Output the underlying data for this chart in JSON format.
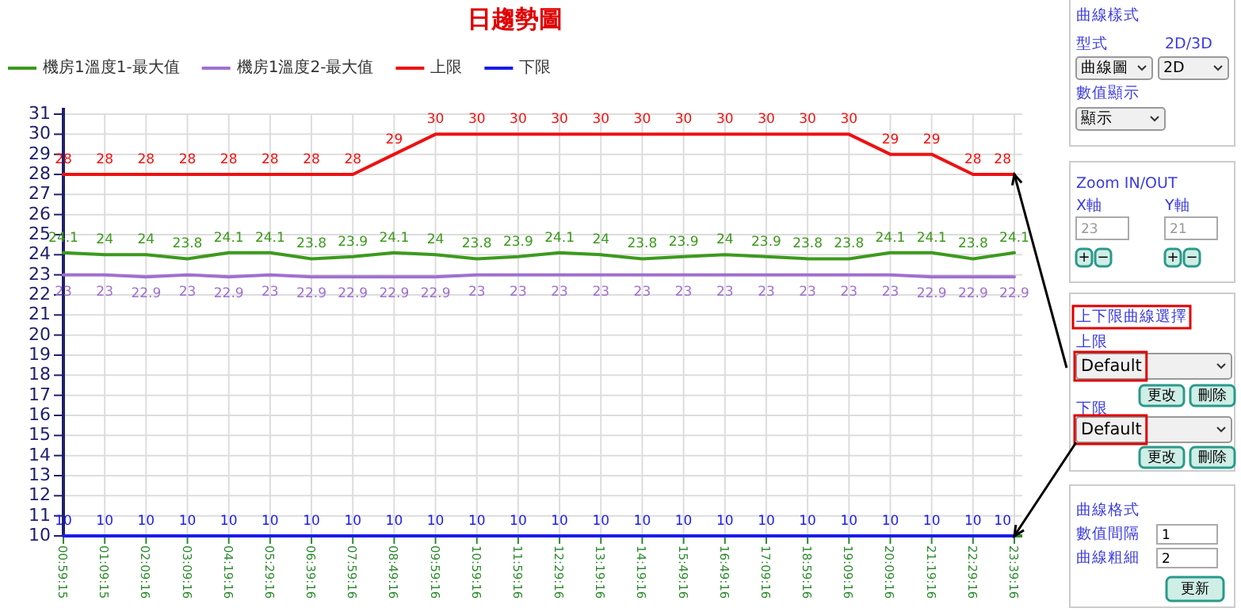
{
  "chart_data": {
    "type": "line",
    "title": "日趨勢圖",
    "categories": [
      "00:59:15",
      "01:09:15",
      "02:09:16",
      "03:09:16",
      "04:19:16",
      "05:29:16",
      "06:39:16",
      "07:59:16",
      "08:49:16",
      "09:59:16",
      "10:59:16",
      "11:59:16",
      "12:29:16",
      "13:19:16",
      "14:19:16",
      "15:49:16",
      "16:49:16",
      "17:09:16",
      "18:59:16",
      "19:09:16",
      "20:09:16",
      "21:19:16",
      "22:29:16",
      "23:39:16"
    ],
    "series": [
      {
        "name": "機房1溫度1-最大值",
        "color": "#3c9a1c",
        "values": [
          24.1,
          24,
          24,
          23.8,
          24.1,
          24.1,
          23.8,
          23.9,
          24.1,
          24,
          23.8,
          23.9,
          24.1,
          24,
          23.8,
          23.9,
          24,
          23.9,
          23.8,
          23.8,
          24.1,
          24.1,
          23.8,
          24.1
        ]
      },
      {
        "name": "機房1溫度2-最大值",
        "color": "#a070d0",
        "values": [
          23,
          23,
          22.9,
          23,
          22.9,
          23,
          22.9,
          22.9,
          22.9,
          22.9,
          23,
          23,
          23,
          23,
          23,
          23,
          23,
          23,
          23,
          23,
          23,
          22.9,
          22.9,
          22.9
        ]
      },
      {
        "name": "上限",
        "color": "#ee1111",
        "values": [
          28,
          28,
          28,
          28,
          28,
          28,
          28,
          28,
          29,
          30,
          30,
          30,
          30,
          30,
          30,
          30,
          30,
          30,
          30,
          30,
          29,
          29,
          28,
          28
        ]
      },
      {
        "name": "下限",
        "color": "#1a1aee",
        "values": [
          10,
          10,
          10,
          10,
          10,
          10,
          10,
          10,
          10,
          10,
          10,
          10,
          10,
          10,
          10,
          10,
          10,
          10,
          10,
          10,
          10,
          10,
          10,
          10
        ]
      }
    ],
    "ylim": [
      10,
      31
    ],
    "yticks": [
      10,
      11,
      12,
      13,
      14,
      15,
      16,
      17,
      18,
      19,
      20,
      21,
      22,
      23,
      24,
      25,
      26,
      27,
      28,
      29,
      30,
      31
    ],
    "grid": true,
    "legend": "top left",
    "data_labels": true,
    "line_style": "solid",
    "annotations": [
      "曲線樣式",
      "型式",
      "2D/3D",
      "曲線圖",
      "2D",
      "數值顯示",
      "顯示",
      "Zoom IN/OUT",
      "X軸",
      "Y軸",
      "23",
      "21",
      "+",
      "−",
      "+",
      "−",
      "上下限曲線選擇",
      "上限",
      {
        "text": "Default",
        "x": "23:39:16",
        "y": 28
      },
      "更改",
      "刪除",
      "下限",
      {
        "text": "Default",
        "x": "23:39:16",
        "y": 10
      },
      "更改",
      "刪除",
      "曲線格式",
      "數值間隔",
      "1",
      "曲線粗細",
      "2",
      "更新"
    ]
  }
}
